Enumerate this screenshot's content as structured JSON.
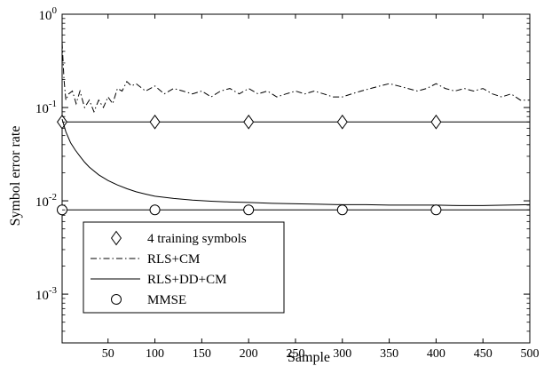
{
  "chart_data": {
    "type": "line",
    "title": "",
    "xlabel": "Sample",
    "ylabel": "Symbol error rate",
    "xlim": [
      1,
      500
    ],
    "ylim": [
      0.0003,
      1
    ],
    "yscale": "log",
    "grid": false,
    "legend_position": "bottom-left",
    "x_ticks": [
      {
        "value": 50,
        "label": "50"
      },
      {
        "value": 100,
        "label": "100"
      },
      {
        "value": 150,
        "label": "150"
      },
      {
        "value": 200,
        "label": "200"
      },
      {
        "value": 250,
        "label": "250"
      },
      {
        "value": 300,
        "label": "300"
      },
      {
        "value": 350,
        "label": "350"
      },
      {
        "value": 400,
        "label": "400"
      },
      {
        "value": 450,
        "label": "450"
      },
      {
        "value": 500,
        "label": "500"
      }
    ],
    "y_ticks": [
      {
        "value": 1,
        "base": "10",
        "exp": "0"
      },
      {
        "value": 0.1,
        "base": "10",
        "exp": "-1"
      },
      {
        "value": 0.01,
        "base": "10",
        "exp": "-2"
      },
      {
        "value": 0.001,
        "base": "10",
        "exp": "-3"
      }
    ],
    "series": [
      {
        "name": "4 training symbols",
        "style": "solid-with-diamonds",
        "x": [
          1,
          500
        ],
        "y": [
          0.07,
          0.07
        ],
        "markers_x": [
          1,
          100,
          200,
          300,
          400
        ]
      },
      {
        "name": "RLS+CM",
        "style": "dashdot",
        "x": [
          1,
          3,
          5,
          8,
          12,
          16,
          20,
          25,
          30,
          35,
          40,
          45,
          50,
          55,
          60,
          65,
          70,
          75,
          80,
          90,
          100,
          110,
          120,
          130,
          140,
          150,
          160,
          170,
          180,
          190,
          200,
          210,
          220,
          230,
          240,
          250,
          260,
          270,
          280,
          290,
          300,
          310,
          320,
          330,
          340,
          350,
          360,
          370,
          380,
          390,
          400,
          410,
          420,
          430,
          440,
          450,
          460,
          470,
          480,
          490,
          500
        ],
        "y": [
          0.5,
          0.2,
          0.12,
          0.14,
          0.15,
          0.11,
          0.15,
          0.1,
          0.12,
          0.09,
          0.12,
          0.1,
          0.13,
          0.11,
          0.16,
          0.15,
          0.19,
          0.17,
          0.18,
          0.15,
          0.17,
          0.14,
          0.16,
          0.15,
          0.14,
          0.15,
          0.13,
          0.15,
          0.16,
          0.14,
          0.16,
          0.14,
          0.15,
          0.13,
          0.14,
          0.15,
          0.14,
          0.15,
          0.14,
          0.13,
          0.13,
          0.14,
          0.15,
          0.16,
          0.17,
          0.18,
          0.17,
          0.16,
          0.15,
          0.16,
          0.18,
          0.16,
          0.15,
          0.16,
          0.15,
          0.16,
          0.14,
          0.13,
          0.14,
          0.12,
          0.12
        ]
      },
      {
        "name": "RLS+DD+CM",
        "style": "solid",
        "x": [
          1,
          5,
          10,
          15,
          20,
          25,
          30,
          40,
          50,
          60,
          70,
          80,
          90,
          100,
          120,
          140,
          160,
          180,
          200,
          225,
          250,
          275,
          300,
          325,
          350,
          375,
          400,
          425,
          450,
          475,
          500
        ],
        "y": [
          0.075,
          0.055,
          0.042,
          0.035,
          0.03,
          0.026,
          0.023,
          0.019,
          0.0165,
          0.0148,
          0.0135,
          0.0125,
          0.0118,
          0.0112,
          0.0106,
          0.0102,
          0.0099,
          0.0097,
          0.0096,
          0.0094,
          0.0093,
          0.0092,
          0.0091,
          0.0091,
          0.009,
          0.009,
          0.009,
          0.0089,
          0.0089,
          0.009,
          0.0091
        ]
      },
      {
        "name": "MMSE",
        "style": "solid-with-circles",
        "x": [
          1,
          500
        ],
        "y": [
          0.008,
          0.008
        ],
        "markers_x": [
          1,
          100,
          200,
          300,
          400
        ]
      }
    ]
  }
}
